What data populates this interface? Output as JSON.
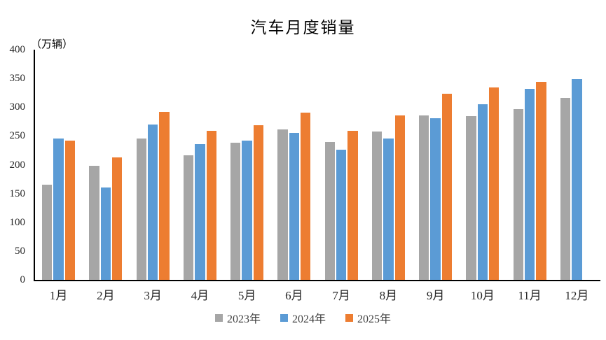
{
  "title": "汽车月度销量",
  "unit_label": "（万辆）",
  "axis_color": "#000000",
  "text_color": "#262626",
  "chart_data": {
    "type": "bar",
    "title": "汽车月度销量",
    "ylabel": "（万辆）",
    "xlabel": "",
    "grid": false,
    "legend_position": "bottom",
    "ylim": [
      0,
      400
    ],
    "ytick_step": 50,
    "categories": [
      "1月",
      "2月",
      "3月",
      "4月",
      "5月",
      "6月",
      "7月",
      "8月",
      "9月",
      "10月",
      "11月",
      "12月"
    ],
    "series": [
      {
        "name": "2023年",
        "color": "#a6a6a6",
        "values": [
          165,
          198,
          246,
          216,
          238,
          262,
          239,
          258,
          286,
          285,
          297,
          316
        ]
      },
      {
        "name": "2024年",
        "color": "#5b9bd5",
        "values": [
          245,
          160,
          270,
          236,
          242,
          255,
          226,
          245,
          281,
          305,
          332,
          349
        ]
      },
      {
        "name": "2025年",
        "color": "#ed7d31",
        "values": [
          242,
          213,
          292,
          259,
          269,
          290,
          259,
          286,
          323,
          334,
          344,
          null
        ]
      }
    ]
  }
}
